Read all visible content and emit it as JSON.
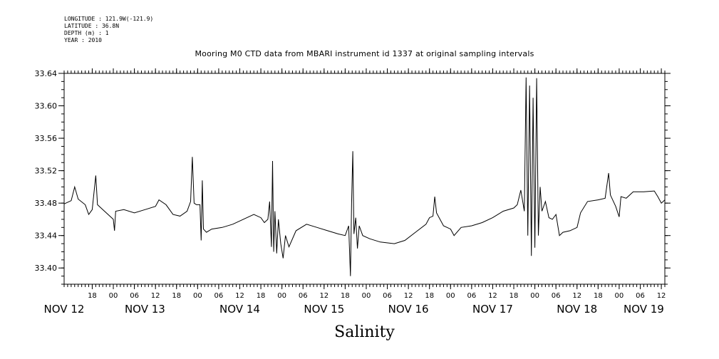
{
  "metadata": {
    "longitude": "LONGITUDE : 121.9W(-121.9)",
    "latitude": "LATITUDE : 36.8N",
    "depth": "DEPTH (m) : 1",
    "year": "YEAR : 2010"
  },
  "chart_data": {
    "type": "line",
    "title": "Mooring M0 CTD data from MBARI instrument id 1337 at original sampling intervals",
    "xlabel": "Salinity",
    "ylabel": "",
    "x_start": "2010-11-12T10:00",
    "x_end": "2010-11-19T13:00",
    "ylim": [
      33.38,
      33.64
    ],
    "y_ticks": [
      "33.40",
      "33.44",
      "33.48",
      "33.52",
      "33.56",
      "33.60",
      "33.64"
    ],
    "hour_ticks": [
      {
        "t": "2010-11-12T18:00",
        "label": "18"
      },
      {
        "t": "2010-11-13T00:00",
        "label": "00"
      },
      {
        "t": "2010-11-13T06:00",
        "label": "06"
      },
      {
        "t": "2010-11-13T12:00",
        "label": "12"
      },
      {
        "t": "2010-11-13T18:00",
        "label": "18"
      },
      {
        "t": "2010-11-14T00:00",
        "label": "00"
      },
      {
        "t": "2010-11-14T06:00",
        "label": "06"
      },
      {
        "t": "2010-11-14T12:00",
        "label": "12"
      },
      {
        "t": "2010-11-14T18:00",
        "label": "18"
      },
      {
        "t": "2010-11-15T00:00",
        "label": "00"
      },
      {
        "t": "2010-11-15T06:00",
        "label": "06"
      },
      {
        "t": "2010-11-15T12:00",
        "label": "12"
      },
      {
        "t": "2010-11-15T18:00",
        "label": "18"
      },
      {
        "t": "2010-11-16T00:00",
        "label": "00"
      },
      {
        "t": "2010-11-16T06:00",
        "label": "06"
      },
      {
        "t": "2010-11-16T12:00",
        "label": "12"
      },
      {
        "t": "2010-11-16T18:00",
        "label": "18"
      },
      {
        "t": "2010-11-17T00:00",
        "label": "00"
      },
      {
        "t": "2010-11-17T06:00",
        "label": "06"
      },
      {
        "t": "2010-11-17T12:00",
        "label": "12"
      },
      {
        "t": "2010-11-17T18:00",
        "label": "18"
      },
      {
        "t": "2010-11-18T00:00",
        "label": "00"
      },
      {
        "t": "2010-11-18T06:00",
        "label": "06"
      },
      {
        "t": "2010-11-18T12:00",
        "label": "12"
      },
      {
        "t": "2010-11-18T18:00",
        "label": "18"
      },
      {
        "t": "2010-11-19T00:00",
        "label": "00"
      },
      {
        "t": "2010-11-19T06:00",
        "label": "06"
      },
      {
        "t": "2010-11-19T12:00",
        "label": "12"
      }
    ],
    "day_labels": [
      {
        "t": "2010-11-12T10:00",
        "label": "NOV 12"
      },
      {
        "t": "2010-11-13T09:00",
        "label": "NOV 13"
      },
      {
        "t": "2010-11-14T12:00",
        "label": "NOV 14"
      },
      {
        "t": "2010-11-15T12:00",
        "label": "NOV 15"
      },
      {
        "t": "2010-11-16T12:00",
        "label": "NOV 16"
      },
      {
        "t": "2010-11-17T12:00",
        "label": "NOV 17"
      },
      {
        "t": "2010-11-18T12:00",
        "label": "NOV 18"
      },
      {
        "t": "2010-11-19T07:00",
        "label": "NOV 19"
      }
    ],
    "series": [
      {
        "values": [
          [
            "2010-11-12T10:00",
            33.479
          ],
          [
            "2010-11-12T12:00",
            33.483
          ],
          [
            "2010-11-12T13:00",
            33.5
          ],
          [
            "2010-11-12T14:00",
            33.485
          ],
          [
            "2010-11-12T16:00",
            33.478
          ],
          [
            "2010-11-12T17:00",
            33.466
          ],
          [
            "2010-11-12T18:00",
            33.472
          ],
          [
            "2010-11-12T19:00",
            33.514
          ],
          [
            "2010-11-12T19:30",
            33.478
          ],
          [
            "2010-11-12T21:00",
            33.472
          ],
          [
            "2010-11-13T00:00",
            33.46
          ],
          [
            "2010-11-13T00:20",
            33.446
          ],
          [
            "2010-11-13T00:40",
            33.47
          ],
          [
            "2010-11-13T03:00",
            33.472
          ],
          [
            "2010-11-13T06:00",
            33.468
          ],
          [
            "2010-11-13T09:00",
            33.472
          ],
          [
            "2010-11-13T12:00",
            33.476
          ],
          [
            "2010-11-13T13:00",
            33.484
          ],
          [
            "2010-11-13T15:00",
            33.478
          ],
          [
            "2010-11-13T17:00",
            33.466
          ],
          [
            "2010-11-13T19:00",
            33.464
          ],
          [
            "2010-11-13T21:00",
            33.47
          ],
          [
            "2010-11-13T22:00",
            33.482
          ],
          [
            "2010-11-13T22:30",
            33.537
          ],
          [
            "2010-11-13T23:00",
            33.48
          ],
          [
            "2010-11-13T23:40",
            33.478
          ],
          [
            "2010-11-14T00:40",
            33.478
          ],
          [
            "2010-11-14T01:00",
            33.434
          ],
          [
            "2010-11-14T01:20",
            33.508
          ],
          [
            "2010-11-14T01:40",
            33.448
          ],
          [
            "2010-11-14T02:30",
            33.444
          ],
          [
            "2010-11-14T04:00",
            33.448
          ],
          [
            "2010-11-14T07:00",
            33.45
          ],
          [
            "2010-11-14T10:00",
            33.454
          ],
          [
            "2010-11-14T13:00",
            33.46
          ],
          [
            "2010-11-14T16:00",
            33.466
          ],
          [
            "2010-11-14T18:00",
            33.462
          ],
          [
            "2010-11-14T19:00",
            33.456
          ],
          [
            "2010-11-14T20:00",
            33.46
          ],
          [
            "2010-11-14T20:30",
            33.482
          ],
          [
            "2010-11-14T21:00",
            33.426
          ],
          [
            "2010-11-14T21:20",
            33.532
          ],
          [
            "2010-11-14T21:40",
            33.42
          ],
          [
            "2010-11-14T22:00",
            33.47
          ],
          [
            "2010-11-14T22:30",
            33.418
          ],
          [
            "2010-11-14T23:00",
            33.46
          ],
          [
            "2010-11-14T23:40",
            33.43
          ],
          [
            "2010-11-15T00:20",
            33.412
          ],
          [
            "2010-11-15T01:00",
            33.44
          ],
          [
            "2010-11-15T02:00",
            33.426
          ],
          [
            "2010-11-15T04:00",
            33.446
          ],
          [
            "2010-11-15T07:00",
            33.454
          ],
          [
            "2010-11-15T10:00",
            33.45
          ],
          [
            "2010-11-15T13:00",
            33.446
          ],
          [
            "2010-11-15T16:00",
            33.442
          ],
          [
            "2010-11-15T18:00",
            33.44
          ],
          [
            "2010-11-15T19:00",
            33.452
          ],
          [
            "2010-11-15T19:30",
            33.39
          ],
          [
            "2010-11-15T19:50",
            33.48
          ],
          [
            "2010-11-15T20:10",
            33.544
          ],
          [
            "2010-11-15T20:30",
            33.442
          ],
          [
            "2010-11-15T21:00",
            33.462
          ],
          [
            "2010-11-15T21:30",
            33.424
          ],
          [
            "2010-11-15T22:00",
            33.452
          ],
          [
            "2010-11-15T23:00",
            33.44
          ],
          [
            "2010-11-16T01:00",
            33.436
          ],
          [
            "2010-11-16T04:00",
            33.432
          ],
          [
            "2010-11-16T08:00",
            33.43
          ],
          [
            "2010-11-16T11:00",
            33.434
          ],
          [
            "2010-11-16T14:00",
            33.444
          ],
          [
            "2010-11-16T17:00",
            33.454
          ],
          [
            "2010-11-16T18:00",
            33.462
          ],
          [
            "2010-11-16T19:00",
            33.464
          ],
          [
            "2010-11-16T19:30",
            33.488
          ],
          [
            "2010-11-16T20:00",
            33.468
          ],
          [
            "2010-11-16T22:00",
            33.452
          ],
          [
            "2010-11-17T00:00",
            33.448
          ],
          [
            "2010-11-17T01:00",
            33.44
          ],
          [
            "2010-11-17T03:00",
            33.45
          ],
          [
            "2010-11-17T06:00",
            33.452
          ],
          [
            "2010-11-17T09:00",
            33.456
          ],
          [
            "2010-11-17T12:00",
            33.462
          ],
          [
            "2010-11-17T15:00",
            33.47
          ],
          [
            "2010-11-17T18:00",
            33.474
          ],
          [
            "2010-11-17T19:00",
            33.478
          ],
          [
            "2010-11-17T20:00",
            33.496
          ],
          [
            "2010-11-17T21:00",
            33.47
          ],
          [
            "2010-11-17T21:30",
            33.635
          ],
          [
            "2010-11-17T22:00",
            33.44
          ],
          [
            "2010-11-17T22:30",
            33.625
          ],
          [
            "2010-11-17T23:00",
            33.415
          ],
          [
            "2010-11-17T23:30",
            33.61
          ],
          [
            "2010-11-18T00:00",
            33.425
          ],
          [
            "2010-11-18T00:30",
            33.634
          ],
          [
            "2010-11-18T01:00",
            33.44
          ],
          [
            "2010-11-18T01:30",
            33.5
          ],
          [
            "2010-11-18T02:00",
            33.47
          ],
          [
            "2010-11-18T03:00",
            33.482
          ],
          [
            "2010-11-18T04:00",
            33.462
          ],
          [
            "2010-11-18T05:00",
            33.46
          ],
          [
            "2010-11-18T06:00",
            33.466
          ],
          [
            "2010-11-18T07:00",
            33.44
          ],
          [
            "2010-11-18T08:00",
            33.444
          ],
          [
            "2010-11-18T10:00",
            33.446
          ],
          [
            "2010-11-18T12:00",
            33.45
          ],
          [
            "2010-11-18T13:00",
            33.468
          ],
          [
            "2010-11-18T15:00",
            33.482
          ],
          [
            "2010-11-18T18:00",
            33.484
          ],
          [
            "2010-11-18T20:00",
            33.486
          ],
          [
            "2010-11-18T21:00",
            33.517
          ],
          [
            "2010-11-18T21:30",
            33.49
          ],
          [
            "2010-11-18T23:00",
            33.476
          ],
          [
            "2010-11-19T00:00",
            33.463
          ],
          [
            "2010-11-19T00:30",
            33.488
          ],
          [
            "2010-11-19T02:00",
            33.486
          ],
          [
            "2010-11-19T04:00",
            33.494
          ],
          [
            "2010-11-19T07:00",
            33.494
          ],
          [
            "2010-11-19T10:00",
            33.495
          ],
          [
            "2010-11-19T11:00",
            33.488
          ],
          [
            "2010-11-19T12:00",
            33.48
          ],
          [
            "2010-11-19T13:00",
            33.484
          ]
        ]
      }
    ]
  }
}
